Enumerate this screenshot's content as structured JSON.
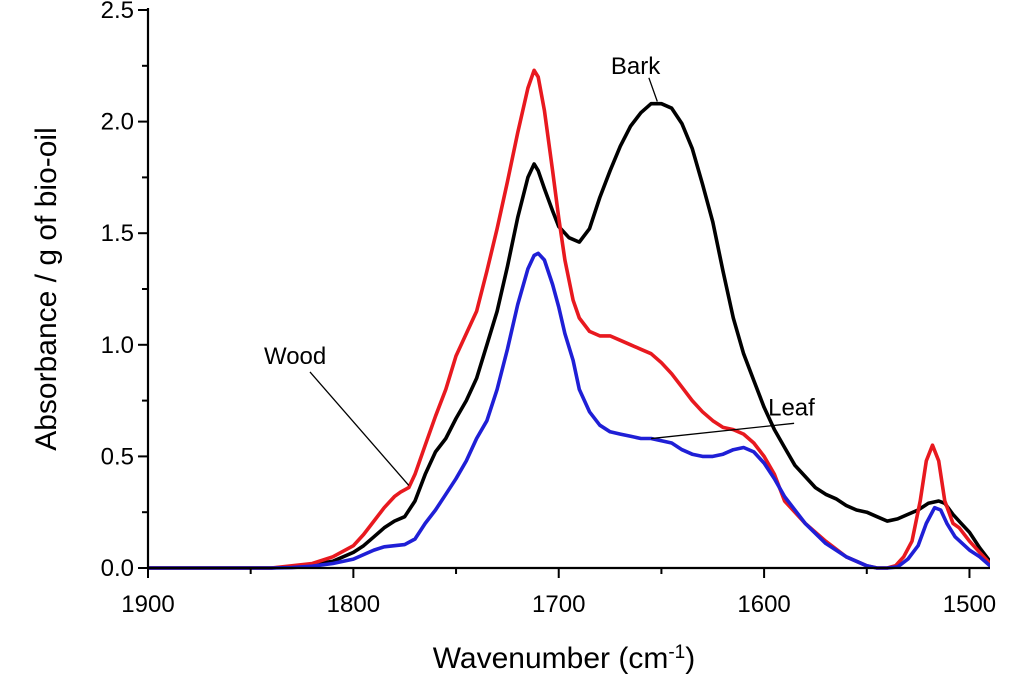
{
  "chart_data": {
    "type": "line",
    "xlabel": "Wavenumber (cm",
    "xlabel_sup": "-1",
    "xlabel_end": ")",
    "ylabel": "Absorbance / g of bio-oil",
    "xlim": [
      1900,
      1490
    ],
    "x_reversed": true,
    "ylim": [
      0,
      2.5
    ],
    "x_ticks": [
      1900,
      1800,
      1700,
      1600,
      1500
    ],
    "x_tick_labels": [
      "1900",
      "1800",
      "1700",
      "1600",
      "1500"
    ],
    "x_minor_ticks": [
      1850,
      1750,
      1650,
      1550
    ],
    "y_ticks": [
      0,
      0.5,
      1.0,
      1.5,
      2.0,
      2.5
    ],
    "y_tick_labels": [
      "0.0",
      "0.5",
      "1.0",
      "1.5",
      "2.0",
      "2.5"
    ],
    "y_minor_ticks": [
      0.25,
      0.75,
      1.25,
      1.75,
      2.25
    ],
    "grid": false,
    "legend": "none",
    "series": [
      {
        "name": "Wood",
        "color": "#e8191f",
        "points": [
          [
            1900,
            0
          ],
          [
            1860,
            0
          ],
          [
            1840,
            0
          ],
          [
            1830,
            0.01
          ],
          [
            1820,
            0.02
          ],
          [
            1810,
            0.05
          ],
          [
            1800,
            0.1
          ],
          [
            1795,
            0.15
          ],
          [
            1790,
            0.21
          ],
          [
            1785,
            0.27
          ],
          [
            1780,
            0.32
          ],
          [
            1777,
            0.34
          ],
          [
            1773,
            0.36
          ],
          [
            1770,
            0.42
          ],
          [
            1765,
            0.55
          ],
          [
            1760,
            0.68
          ],
          [
            1755,
            0.8
          ],
          [
            1750,
            0.95
          ],
          [
            1745,
            1.05
          ],
          [
            1740,
            1.15
          ],
          [
            1735,
            1.33
          ],
          [
            1730,
            1.52
          ],
          [
            1725,
            1.73
          ],
          [
            1720,
            1.95
          ],
          [
            1715,
            2.15
          ],
          [
            1712,
            2.23
          ],
          [
            1710,
            2.2
          ],
          [
            1707,
            2.05
          ],
          [
            1703,
            1.78
          ],
          [
            1700,
            1.57
          ],
          [
            1697,
            1.38
          ],
          [
            1693,
            1.2
          ],
          [
            1690,
            1.12
          ],
          [
            1685,
            1.06
          ],
          [
            1680,
            1.04
          ],
          [
            1675,
            1.04
          ],
          [
            1670,
            1.02
          ],
          [
            1665,
            1.0
          ],
          [
            1660,
            0.98
          ],
          [
            1655,
            0.96
          ],
          [
            1650,
            0.92
          ],
          [
            1645,
            0.87
          ],
          [
            1640,
            0.81
          ],
          [
            1635,
            0.75
          ],
          [
            1630,
            0.7
          ],
          [
            1625,
            0.66
          ],
          [
            1620,
            0.63
          ],
          [
            1615,
            0.62
          ],
          [
            1610,
            0.6
          ],
          [
            1605,
            0.56
          ],
          [
            1600,
            0.5
          ],
          [
            1595,
            0.42
          ],
          [
            1590,
            0.3
          ],
          [
            1580,
            0.2
          ],
          [
            1570,
            0.12
          ],
          [
            1560,
            0.05
          ],
          [
            1550,
            0.01
          ],
          [
            1545,
            0
          ],
          [
            1540,
            0
          ],
          [
            1536,
            0.01
          ],
          [
            1532,
            0.05
          ],
          [
            1528,
            0.12
          ],
          [
            1524,
            0.3
          ],
          [
            1521,
            0.48
          ],
          [
            1518,
            0.55
          ],
          [
            1515,
            0.48
          ],
          [
            1512,
            0.3
          ],
          [
            1508,
            0.2
          ],
          [
            1505,
            0.18
          ],
          [
            1500,
            0.12
          ],
          [
            1495,
            0.07
          ],
          [
            1490,
            0.02
          ]
        ]
      },
      {
        "name": "Bark",
        "color": "#000000",
        "points": [
          [
            1900,
            0
          ],
          [
            1860,
            0
          ],
          [
            1840,
            0
          ],
          [
            1830,
            0.005
          ],
          [
            1820,
            0.015
          ],
          [
            1810,
            0.03
          ],
          [
            1800,
            0.07
          ],
          [
            1795,
            0.1
          ],
          [
            1790,
            0.14
          ],
          [
            1785,
            0.18
          ],
          [
            1780,
            0.21
          ],
          [
            1775,
            0.23
          ],
          [
            1770,
            0.3
          ],
          [
            1765,
            0.42
          ],
          [
            1760,
            0.52
          ],
          [
            1755,
            0.58
          ],
          [
            1750,
            0.67
          ],
          [
            1745,
            0.75
          ],
          [
            1740,
            0.85
          ],
          [
            1735,
            1.0
          ],
          [
            1730,
            1.15
          ],
          [
            1725,
            1.35
          ],
          [
            1720,
            1.57
          ],
          [
            1715,
            1.75
          ],
          [
            1712,
            1.81
          ],
          [
            1710,
            1.78
          ],
          [
            1707,
            1.7
          ],
          [
            1703,
            1.6
          ],
          [
            1700,
            1.53
          ],
          [
            1695,
            1.48
          ],
          [
            1690,
            1.46
          ],
          [
            1685,
            1.52
          ],
          [
            1680,
            1.66
          ],
          [
            1675,
            1.78
          ],
          [
            1670,
            1.89
          ],
          [
            1665,
            1.98
          ],
          [
            1660,
            2.04
          ],
          [
            1655,
            2.08
          ],
          [
            1650,
            2.08
          ],
          [
            1645,
            2.06
          ],
          [
            1640,
            1.99
          ],
          [
            1635,
            1.88
          ],
          [
            1630,
            1.72
          ],
          [
            1625,
            1.55
          ],
          [
            1620,
            1.33
          ],
          [
            1615,
            1.12
          ],
          [
            1610,
            0.96
          ],
          [
            1605,
            0.84
          ],
          [
            1600,
            0.72
          ],
          [
            1595,
            0.62
          ],
          [
            1590,
            0.54
          ],
          [
            1585,
            0.46
          ],
          [
            1580,
            0.41
          ],
          [
            1575,
            0.36
          ],
          [
            1570,
            0.33
          ],
          [
            1565,
            0.31
          ],
          [
            1560,
            0.28
          ],
          [
            1555,
            0.26
          ],
          [
            1550,
            0.25
          ],
          [
            1545,
            0.23
          ],
          [
            1540,
            0.21
          ],
          [
            1535,
            0.22
          ],
          [
            1530,
            0.24
          ],
          [
            1525,
            0.26
          ],
          [
            1520,
            0.29
          ],
          [
            1515,
            0.3
          ],
          [
            1512,
            0.29
          ],
          [
            1508,
            0.24
          ],
          [
            1504,
            0.2
          ],
          [
            1500,
            0.16
          ],
          [
            1495,
            0.09
          ],
          [
            1490,
            0.03
          ]
        ]
      },
      {
        "name": "Leaf",
        "color": "#1f1fd6",
        "points": [
          [
            1900,
            0
          ],
          [
            1860,
            0
          ],
          [
            1840,
            0
          ],
          [
            1830,
            0.002
          ],
          [
            1820,
            0.008
          ],
          [
            1810,
            0.02
          ],
          [
            1800,
            0.04
          ],
          [
            1795,
            0.06
          ],
          [
            1790,
            0.08
          ],
          [
            1785,
            0.095
          ],
          [
            1780,
            0.1
          ],
          [
            1775,
            0.105
          ],
          [
            1770,
            0.13
          ],
          [
            1765,
            0.2
          ],
          [
            1760,
            0.26
          ],
          [
            1755,
            0.33
          ],
          [
            1750,
            0.4
          ],
          [
            1745,
            0.48
          ],
          [
            1740,
            0.58
          ],
          [
            1735,
            0.66
          ],
          [
            1730,
            0.8
          ],
          [
            1725,
            0.98
          ],
          [
            1720,
            1.18
          ],
          [
            1715,
            1.34
          ],
          [
            1712,
            1.4
          ],
          [
            1710,
            1.41
          ],
          [
            1707,
            1.38
          ],
          [
            1703,
            1.27
          ],
          [
            1700,
            1.17
          ],
          [
            1697,
            1.05
          ],
          [
            1693,
            0.93
          ],
          [
            1690,
            0.8
          ],
          [
            1685,
            0.7
          ],
          [
            1680,
            0.64
          ],
          [
            1675,
            0.61
          ],
          [
            1670,
            0.6
          ],
          [
            1665,
            0.59
          ],
          [
            1660,
            0.58
          ],
          [
            1655,
            0.58
          ],
          [
            1650,
            0.57
          ],
          [
            1645,
            0.56
          ],
          [
            1640,
            0.53
          ],
          [
            1635,
            0.51
          ],
          [
            1630,
            0.5
          ],
          [
            1625,
            0.5
          ],
          [
            1620,
            0.51
          ],
          [
            1615,
            0.53
          ],
          [
            1610,
            0.54
          ],
          [
            1605,
            0.52
          ],
          [
            1600,
            0.47
          ],
          [
            1595,
            0.4
          ],
          [
            1590,
            0.32
          ],
          [
            1580,
            0.2
          ],
          [
            1570,
            0.11
          ],
          [
            1560,
            0.05
          ],
          [
            1550,
            0.01
          ],
          [
            1545,
            0
          ],
          [
            1540,
            0
          ],
          [
            1535,
            0.005
          ],
          [
            1530,
            0.04
          ],
          [
            1525,
            0.1
          ],
          [
            1521,
            0.2
          ],
          [
            1517,
            0.27
          ],
          [
            1514,
            0.26
          ],
          [
            1511,
            0.2
          ],
          [
            1507,
            0.14
          ],
          [
            1500,
            0.08
          ],
          [
            1495,
            0.05
          ],
          [
            1490,
            0.01
          ]
        ]
      }
    ],
    "annotations": [
      {
        "text": "Wood",
        "series": "Wood",
        "label_x": 1826,
        "label_y": 0.95,
        "point_x": 1773,
        "point_y": 0.37
      },
      {
        "text": "Bark",
        "series": "Bark",
        "label_x": 1660,
        "label_y": 2.25,
        "point_x": 1652,
        "point_y": 2.09
      },
      {
        "text": "Leaf",
        "series": "Leaf",
        "label_x": 1600,
        "label_y": 0.72,
        "point_x": 1655,
        "point_y": 0.58
      }
    ]
  }
}
